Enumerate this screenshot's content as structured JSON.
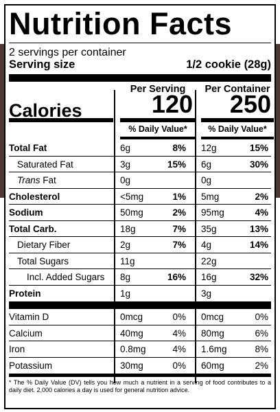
{
  "title": "Nutrition Facts",
  "servings_per_container": "2 servings per container",
  "serving_size": {
    "label": "Serving size",
    "value": "1/2 cookie (28g)"
  },
  "calories": {
    "label": "Calories",
    "per_serving_header": "Per Serving",
    "per_container_header": "Per Container",
    "per_serving": "120",
    "per_container": "250",
    "dv_header": "% Daily Value*"
  },
  "nutrients": [
    {
      "name": "Total Fat",
      "bold": true,
      "indent": 0,
      "s_amt": "6g",
      "s_dv": "8%",
      "c_amt": "12g",
      "c_dv": "15%"
    },
    {
      "name": "Saturated Fat",
      "bold": false,
      "indent": 1,
      "s_amt": "3g",
      "s_dv": "15%",
      "c_amt": "6g",
      "c_dv": "30%"
    },
    {
      "name_italic": "Trans",
      "name_rest": " Fat",
      "bold": false,
      "indent": 1,
      "s_amt": "0g",
      "s_dv": "",
      "c_amt": "0g",
      "c_dv": ""
    },
    {
      "name": "Cholesterol",
      "bold": true,
      "indent": 0,
      "s_amt": "<5mg",
      "s_dv": "1%",
      "c_amt": "5mg",
      "c_dv": "2%"
    },
    {
      "name": "Sodium",
      "bold": true,
      "indent": 0,
      "s_amt": "50mg",
      "s_dv": "2%",
      "c_amt": "95mg",
      "c_dv": "4%"
    },
    {
      "name": "Total Carb.",
      "bold": true,
      "indent": 0,
      "s_amt": "18g",
      "s_dv": "7%",
      "c_amt": "35g",
      "c_dv": "13%"
    },
    {
      "name": "Dietary Fiber",
      "bold": false,
      "indent": 1,
      "s_amt": "2g",
      "s_dv": "7%",
      "c_amt": "4g",
      "c_dv": "14%"
    },
    {
      "name": "Total Sugars",
      "bold": false,
      "indent": 1,
      "s_amt": "11g",
      "s_dv": "",
      "c_amt": "22g",
      "c_dv": ""
    },
    {
      "name": "Incl. Added Sugars",
      "bold": false,
      "indent": 2,
      "s_amt": "8g",
      "s_dv": "16%",
      "c_amt": "16g",
      "c_dv": "32%"
    },
    {
      "name": "Protein",
      "bold": true,
      "indent": 0,
      "s_amt": "1g",
      "s_dv": "",
      "c_amt": "3g",
      "c_dv": ""
    }
  ],
  "vitamins": [
    {
      "name": "Vitamin D",
      "s_amt": "0mcg",
      "s_dv": "0%",
      "c_amt": "0mcg",
      "c_dv": "0%"
    },
    {
      "name": "Calcium",
      "s_amt": "40mg",
      "s_dv": "4%",
      "c_amt": "80mg",
      "c_dv": "6%"
    },
    {
      "name": "Iron",
      "s_amt": "0.8mg",
      "s_dv": "4%",
      "c_amt": "1.6mg",
      "c_dv": "8%"
    },
    {
      "name": "Potassium",
      "s_amt": "30mg",
      "s_dv": "0%",
      "c_amt": "60mg",
      "c_dv": "2%"
    }
  ],
  "footnote": "* The % Daily Value (DV) tells you how much a nutrient in a serving of food contributes to a daily diet. 2,000 calories a day is used for general nutrition advice."
}
